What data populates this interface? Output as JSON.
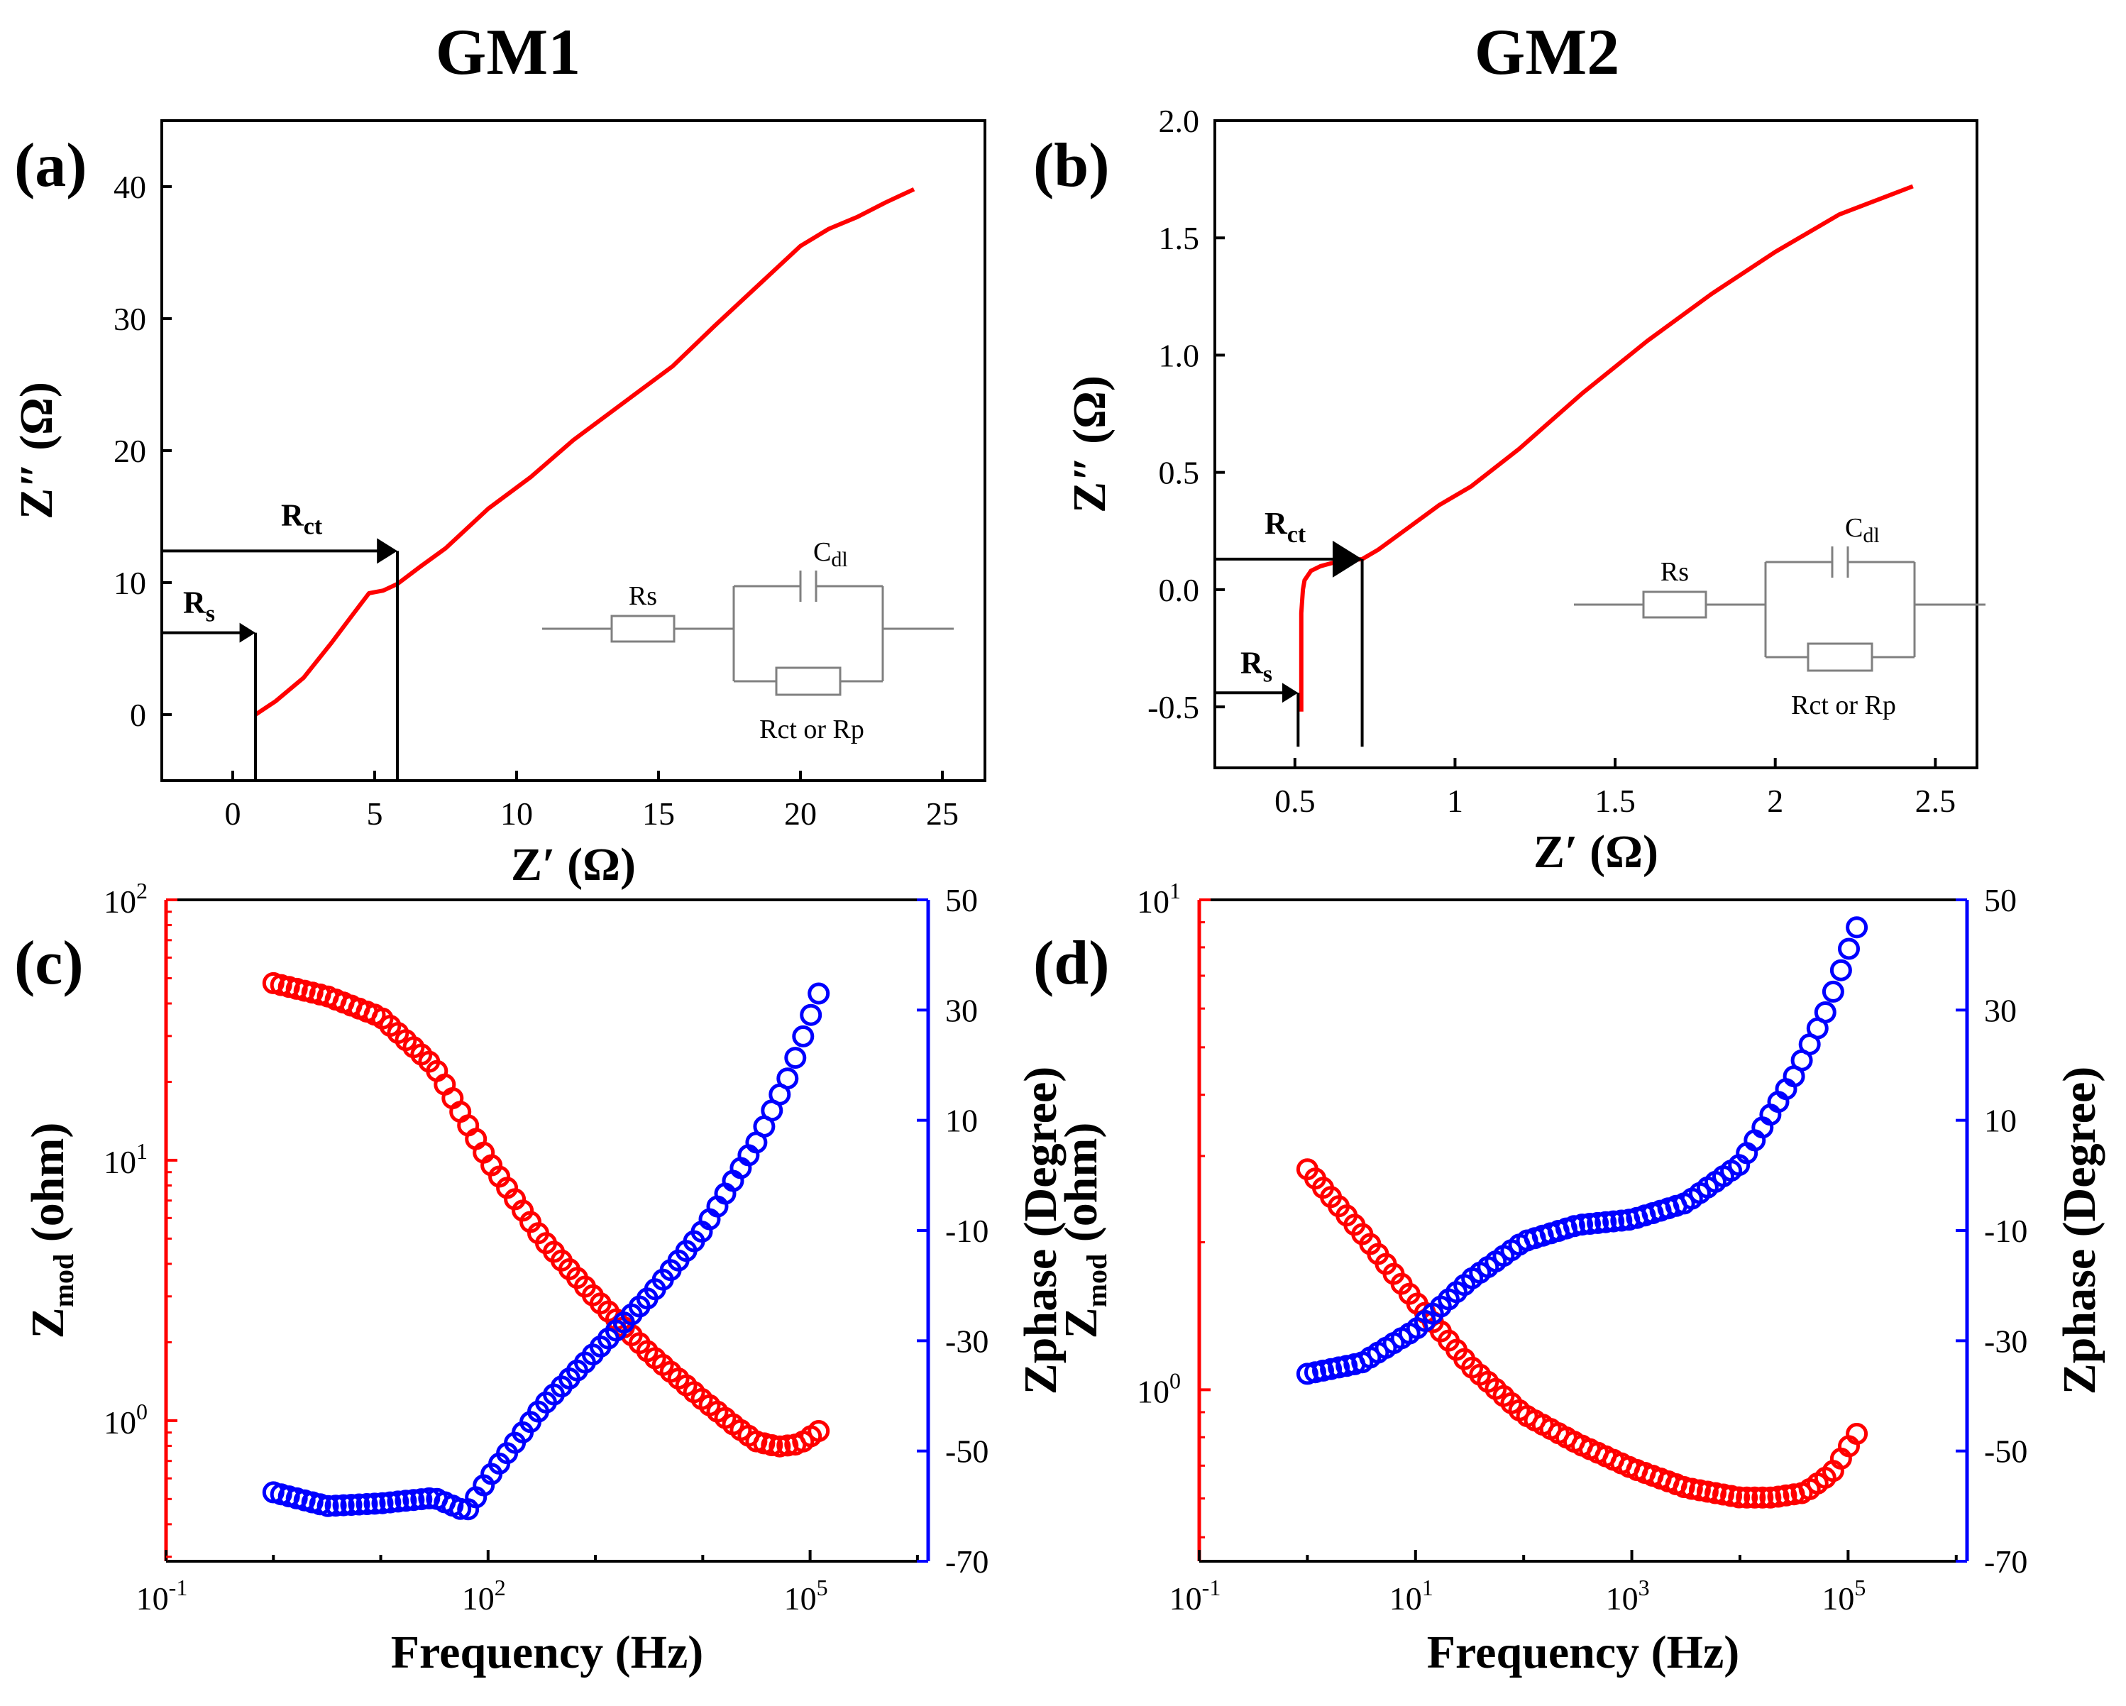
{
  "figure": {
    "titles": [
      "GM1",
      "GM2"
    ],
    "panel_labels": [
      "(a)",
      "(b)",
      "(c)",
      "(d)"
    ]
  },
  "colors": {
    "red": "#ff0000",
    "blue": "#0000ff",
    "black": "#000000"
  },
  "chart_data": [
    {
      "id": "a",
      "type": "line",
      "title": "GM1",
      "xlabel": "Z′ (Ω)",
      "ylabel": "Z″ (Ω)",
      "xlim": [
        -2.5,
        26.5
      ],
      "ylim": [
        -5,
        45
      ],
      "xticks": [
        0,
        5,
        10,
        15,
        20,
        25
      ],
      "yticks": [
        0,
        10,
        20,
        30,
        40
      ],
      "series": [
        {
          "name": "Nyquist",
          "color": "#ff0000",
          "x": [
            0.8,
            1.5,
            2.5,
            3.5,
            4.2,
            4.8,
            5.3,
            5.8,
            6.6,
            7.5,
            9.0,
            10.5,
            12.0,
            14.0,
            15.5,
            17.0,
            18.5,
            20.0,
            21.0,
            22.0,
            23.0,
            24.0
          ],
          "y": [
            0.0,
            1.0,
            2.8,
            5.5,
            7.5,
            9.2,
            9.4,
            9.9,
            11.2,
            12.6,
            15.6,
            18.0,
            20.8,
            24.0,
            26.4,
            29.5,
            32.5,
            35.5,
            36.8,
            37.7,
            38.8,
            39.8
          ]
        }
      ],
      "annotations": [
        {
          "label": "R",
          "sub": "s",
          "value": 0.8,
          "arrow_y": 6.2
        },
        {
          "label": "R",
          "sub": "ct",
          "value": 5.8,
          "arrow_y": 12.4
        }
      ],
      "circuit": {
        "rs": "Rs",
        "cdl_main": "C",
        "cdl_sub": "dl",
        "r_label": "Rct  or  Rp"
      }
    },
    {
      "id": "b",
      "type": "line",
      "title": "GM2",
      "xlabel": "Z′ (Ω)",
      "ylabel": "Z″ (Ω)",
      "xlim": [
        0.25,
        2.63
      ],
      "ylim": [
        -0.76,
        2.0
      ],
      "xticks": [
        0.5,
        1.0,
        1.5,
        2.0,
        2.5
      ],
      "yticks": [
        -0.5,
        0.0,
        0.5,
        1.0,
        1.5,
        2.0
      ],
      "ytick_labels": [
        "-0.5",
        "0.0",
        "0.5",
        "1.0",
        "1.5",
        "2.0"
      ],
      "series": [
        {
          "name": "Nyquist",
          "color": "#ff0000",
          "x": [
            0.52,
            0.52,
            0.52,
            0.525,
            0.53,
            0.55,
            0.58,
            0.62,
            0.67,
            0.71,
            0.76,
            0.85,
            0.95,
            1.05,
            1.2,
            1.4,
            1.6,
            1.8,
            2.0,
            2.2,
            2.43
          ],
          "y": [
            -0.52,
            -0.3,
            -0.1,
            0.0,
            0.04,
            0.08,
            0.1,
            0.115,
            0.125,
            0.13,
            0.17,
            0.26,
            0.36,
            0.44,
            0.6,
            0.84,
            1.06,
            1.26,
            1.44,
            1.6,
            1.72
          ]
        }
      ],
      "annotations": [
        {
          "label": "R",
          "sub": "s",
          "value": 0.51,
          "arrow_y": -0.44
        },
        {
          "label": "R",
          "sub": "ct",
          "value": 0.71,
          "arrow_y": 0.13
        }
      ],
      "circuit": {
        "rs": "Rs",
        "cdl_main": "C",
        "cdl_sub": "dl",
        "r_label": "Rct  or  Rp"
      }
    },
    {
      "id": "c",
      "type": "scatter",
      "title": "GM1",
      "xlabel": "Frequency (Hz)",
      "ylabel_left_main": "Z",
      "ylabel_left_sub": "mod",
      "ylabel_left_rest": " (ohm)",
      "ylabel_right": "Zphase (Degree)",
      "xlog_range": [
        -1,
        6.1
      ],
      "ylog_left_range": [
        -0.54,
        2.0
      ],
      "yright_lim": [
        -70,
        50
      ],
      "xticks_exp": [
        -1,
        2,
        5
      ],
      "yleft_ticks_exp": [
        0,
        1,
        2
      ],
      "yright_ticks": [
        -70,
        -50,
        -30,
        -10,
        10,
        30,
        50
      ],
      "freq_log_start": 0.0,
      "freq_log_end": 5.08,
      "n_points": 71,
      "series": [
        {
          "name": "Zmod",
          "axis": "left",
          "color": "#ff0000",
          "log_freq": [
            0.0,
            0.5,
            1.0,
            1.5,
            2.0,
            2.5,
            3.0,
            3.5,
            4.0,
            4.3,
            4.5,
            4.7,
            4.9,
            5.08
          ],
          "log_value": [
            1.68,
            1.63,
            1.55,
            1.36,
            1.0,
            0.7,
            0.47,
            0.26,
            0.08,
            -0.02,
            -0.08,
            -0.1,
            -0.09,
            -0.04
          ]
        },
        {
          "name": "Zphase",
          "axis": "right",
          "color": "#0000ff",
          "log_freq": [
            0.0,
            0.5,
            1.0,
            1.5,
            1.8,
            2.0,
            2.5,
            3.0,
            3.5,
            4.0,
            4.5,
            4.8,
            5.08
          ],
          "value": [
            -57.5,
            -60,
            -59.5,
            -58.5,
            -61,
            -55,
            -42,
            -32,
            -22,
            -10,
            6,
            18,
            33
          ]
        }
      ]
    },
    {
      "id": "d",
      "type": "scatter",
      "title": "GM2",
      "xlabel": "Frequency (Hz)",
      "ylabel_left_main": "Z",
      "ylabel_left_sub": "mod",
      "ylabel_left_rest": " (ohm)",
      "ylabel_right": "Zphase (Degree)",
      "xlog_range": [
        -1,
        6.1
      ],
      "ylog_left_range": [
        -0.35,
        1.0
      ],
      "yright_lim": [
        -70,
        50
      ],
      "xticks_exp": [
        -1,
        1,
        3,
        5
      ],
      "yleft_ticks_exp": [
        0,
        1
      ],
      "yright_ticks": [
        -70,
        -50,
        -30,
        -10,
        10,
        30,
        50
      ],
      "freq_log_start": 0.0,
      "freq_log_end": 5.08,
      "n_points": 71,
      "series": [
        {
          "name": "Zmod",
          "axis": "left",
          "color": "#ff0000",
          "log_freq": [
            0.0,
            0.5,
            1.0,
            1.5,
            2.0,
            2.5,
            3.0,
            3.5,
            4.0,
            4.3,
            4.6,
            4.85,
            5.08
          ],
          "log_value": [
            0.45,
            0.32,
            0.18,
            0.05,
            -0.05,
            -0.11,
            -0.16,
            -0.2,
            -0.22,
            -0.22,
            -0.21,
            -0.17,
            -0.09
          ]
        },
        {
          "name": "Zphase",
          "axis": "right",
          "color": "#0000ff",
          "log_freq": [
            0.0,
            0.5,
            1.0,
            1.5,
            2.0,
            2.5,
            3.0,
            3.5,
            4.0,
            4.5,
            4.8,
            5.08
          ],
          "value": [
            -36,
            -34,
            -28,
            -19,
            -12,
            -9,
            -8,
            -5,
            2,
            18,
            30,
            45
          ]
        }
      ]
    }
  ]
}
